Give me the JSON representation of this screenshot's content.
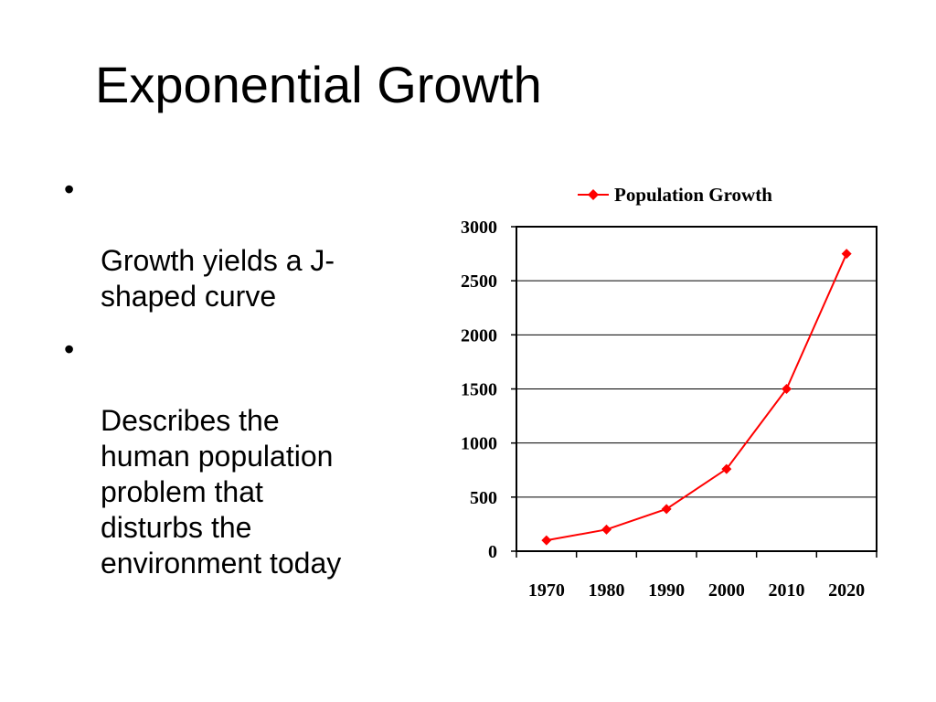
{
  "slide": {
    "title": "Exponential Growth",
    "bullets": [
      {
        "mark": "•",
        "text": "Growth yields a   J-\nshaped curve"
      },
      {
        "mark": "•",
        "text": "Describes the\nhuman population\nproblem that\ndisturbs the\nenvironment today"
      }
    ]
  },
  "chart_data": {
    "type": "line",
    "title": "",
    "xlabel": "",
    "ylabel": "",
    "categories": [
      "1970",
      "1980",
      "1990",
      "2000",
      "2010",
      "2020"
    ],
    "series": [
      {
        "name": "Population Growth",
        "values": [
          100,
          200,
          390,
          760,
          1500,
          2750
        ],
        "color": "#ff0000",
        "marker": "diamond"
      }
    ],
    "ylim": [
      0,
      3000
    ],
    "yticks": [
      0,
      500,
      1000,
      1500,
      2000,
      2500,
      3000
    ],
    "grid": true,
    "legend": "top"
  }
}
